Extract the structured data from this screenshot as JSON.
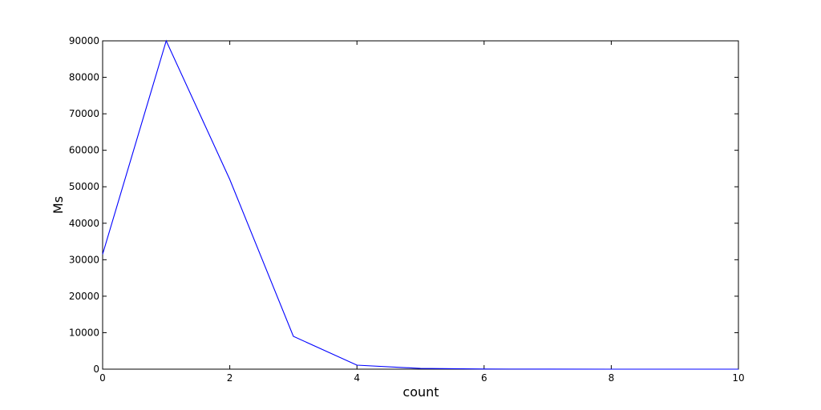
{
  "chart_data": {
    "type": "line",
    "title": "",
    "xlabel": "count",
    "ylabel": "Ms",
    "xlim": [
      0,
      10
    ],
    "ylim": [
      0,
      90000
    ],
    "xticks": [
      0,
      2,
      4,
      6,
      8,
      10
    ],
    "yticks": [
      0,
      10000,
      20000,
      30000,
      40000,
      50000,
      60000,
      70000,
      80000,
      90000
    ],
    "grid": false,
    "series": [
      {
        "color": "#0000ff",
        "x": [
          0,
          1,
          2,
          3,
          4,
          5,
          6,
          7,
          8,
          9,
          10
        ],
        "y": [
          31500,
          90000,
          52000,
          9000,
          1100,
          200,
          40,
          10,
          3,
          1,
          0
        ]
      }
    ]
  }
}
